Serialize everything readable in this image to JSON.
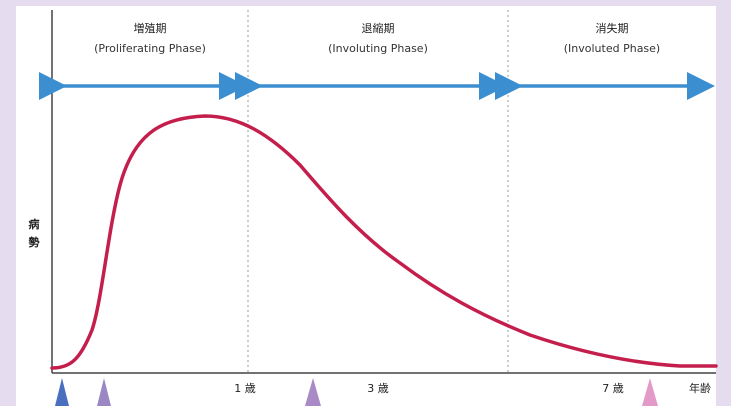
{
  "phases": [
    {
      "title": "増殖期",
      "subtitle": "(Proliferating Phase)"
    },
    {
      "title": "退縮期",
      "subtitle": "(Involuting Phase)"
    },
    {
      "title": "消失期",
      "subtitle": "(Involuted Phase)"
    }
  ],
  "y_label_chars": [
    "病",
    "勢"
  ],
  "x_ticks": [
    "1 歳",
    "3 歳",
    "7 歳",
    "年齢"
  ],
  "colors": {
    "background": "#e5dcef",
    "arrow": "#3b8fd0",
    "curve": "#c41f4c",
    "marker_blue": "#4b6fbf",
    "marker_purple": "#9a87c4",
    "marker_violet": "#a98ac6",
    "marker_pink": "#e39ac8"
  }
}
